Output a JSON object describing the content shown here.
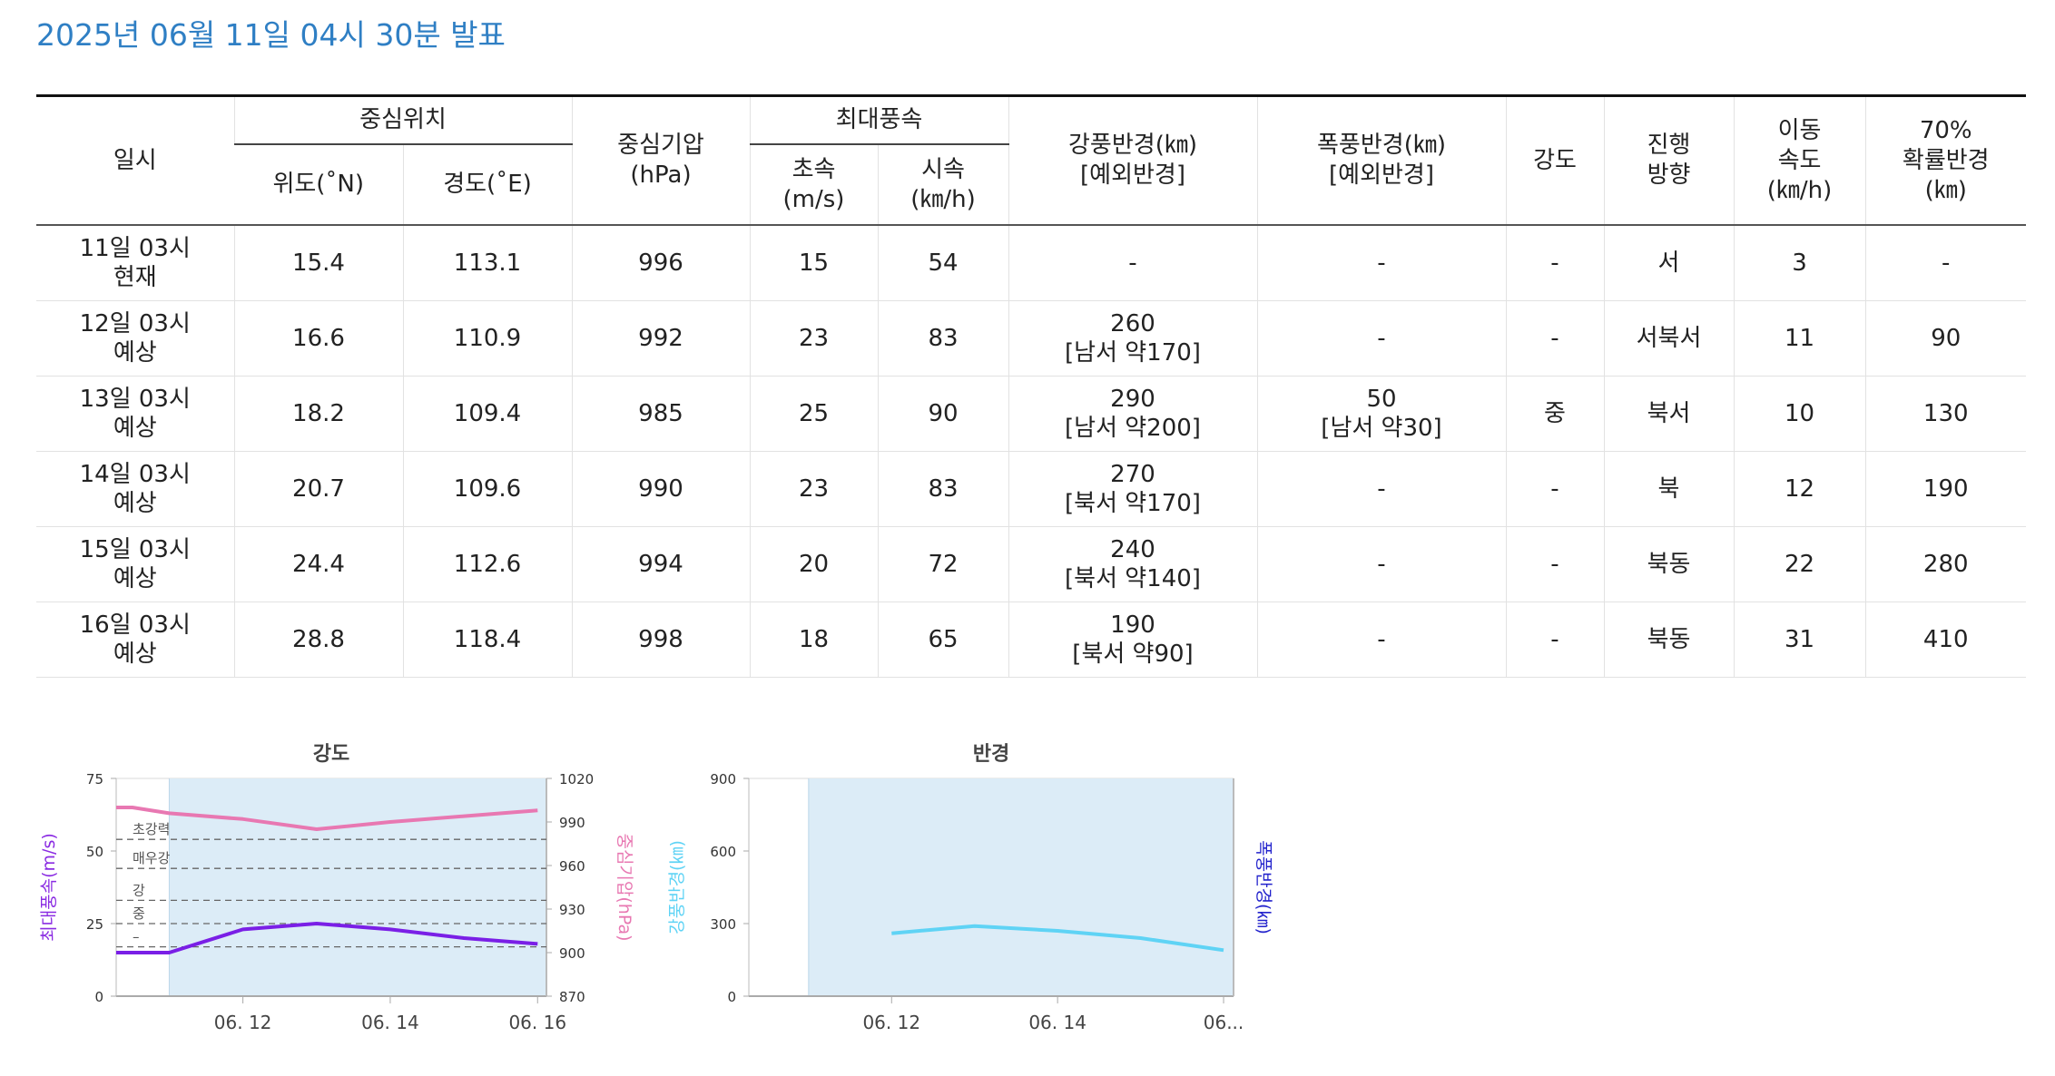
{
  "header": {
    "title": "2025년 06월 11일 04시 30분 발표"
  },
  "table": {
    "headers": {
      "datetime": "일시",
      "center_group": "중심위치",
      "lat": "위도(˚N)",
      "lon": "경도(˚E)",
      "pressure": [
        "중심기압",
        "(hPa)"
      ],
      "maxwind_group": "최대풍속",
      "wind_ms": [
        "초속",
        "(m/s)"
      ],
      "wind_kmh": [
        "시속",
        "(㎞/h)"
      ],
      "gale_radius": [
        "강풍반경(㎞)",
        "[예외반경]"
      ],
      "storm_radius": [
        "폭풍반경(㎞)",
        "[예외반경]"
      ],
      "intensity": "강도",
      "direction": [
        "진행",
        "방향"
      ],
      "speed": [
        "이동",
        "속도",
        "(㎞/h)"
      ],
      "prob_radius": [
        "70%",
        "확률반경",
        "(㎞)"
      ]
    },
    "rows": [
      {
        "time": "11일 03시",
        "status": "현재",
        "lat": "15.4",
        "lon": "113.1",
        "pressure": "996",
        "wind_ms": "15",
        "wind_kmh": "54",
        "gale": "-",
        "gale_ex": "",
        "storm": "-",
        "storm_ex": "",
        "intensity": "-",
        "direction": "서",
        "speed": "3",
        "prob": "-"
      },
      {
        "time": "12일 03시",
        "status": "예상",
        "lat": "16.6",
        "lon": "110.9",
        "pressure": "992",
        "wind_ms": "23",
        "wind_kmh": "83",
        "gale": "260",
        "gale_ex": "[남서 약170]",
        "storm": "-",
        "storm_ex": "",
        "intensity": "-",
        "direction": "서북서",
        "speed": "11",
        "prob": "90"
      },
      {
        "time": "13일 03시",
        "status": "예상",
        "lat": "18.2",
        "lon": "109.4",
        "pressure": "985",
        "wind_ms": "25",
        "wind_kmh": "90",
        "gale": "290",
        "gale_ex": "[남서 약200]",
        "storm": "50",
        "storm_ex": "[남서 약30]",
        "intensity": "중",
        "direction": "북서",
        "speed": "10",
        "prob": "130"
      },
      {
        "time": "14일 03시",
        "status": "예상",
        "lat": "20.7",
        "lon": "109.6",
        "pressure": "990",
        "wind_ms": "23",
        "wind_kmh": "83",
        "gale": "270",
        "gale_ex": "[북서 약170]",
        "storm": "-",
        "storm_ex": "",
        "intensity": "-",
        "direction": "북",
        "speed": "12",
        "prob": "190"
      },
      {
        "time": "15일 03시",
        "status": "예상",
        "lat": "24.4",
        "lon": "112.6",
        "pressure": "994",
        "wind_ms": "20",
        "wind_kmh": "72",
        "gale": "240",
        "gale_ex": "[북서 약140]",
        "storm": "-",
        "storm_ex": "",
        "intensity": "-",
        "direction": "북동",
        "speed": "22",
        "prob": "280"
      },
      {
        "time": "16일 03시",
        "status": "예상",
        "lat": "28.8",
        "lon": "118.4",
        "pressure": "998",
        "wind_ms": "18",
        "wind_kmh": "65",
        "gale": "190",
        "gale_ex": "[북서 약90]",
        "storm": "-",
        "storm_ex": "",
        "intensity": "-",
        "direction": "북동",
        "speed": "31",
        "prob": "410"
      }
    ]
  },
  "chart_data": [
    {
      "type": "line",
      "title": "강도",
      "ylabel": "최대풍속(m/s)",
      "y2label": "중심기압(hPa)",
      "ylim": [
        0,
        75
      ],
      "y_ticks": [
        "0",
        "25",
        "50",
        "75"
      ],
      "y2lim": [
        870,
        1020
      ],
      "y2_ticks": [
        "870",
        "900",
        "930",
        "960",
        "990",
        "1020"
      ],
      "x_ticks": [
        {
          "day": 12,
          "label": "06. 12"
        },
        {
          "day": 14,
          "label": "06. 14"
        },
        {
          "day": 16,
          "label": "06. 16"
        }
      ],
      "xlim": [
        10.28,
        16.12
      ],
      "forecast_start": 11.0,
      "thresholds": [
        {
          "label": "초강력",
          "value": 54
        },
        {
          "label": "매우강",
          "value": 44
        },
        {
          "label": "강",
          "value": 33
        },
        {
          "label": "중",
          "value": 25
        },
        {
          "label": "–",
          "value": 17
        }
      ],
      "series": [
        {
          "axis": "left",
          "color": "#7a1fe6",
          "x": [
            10.28,
            11.0,
            12.0,
            13.0,
            14.0,
            15.0,
            16.0
          ],
          "values": [
            15,
            15,
            23,
            25,
            23,
            20,
            18
          ]
        },
        {
          "axis": "right",
          "color": "#e878b2",
          "x": [
            10.28,
            10.5,
            11.0,
            12.0,
            13.0,
            14.0,
            15.0,
            16.0
          ],
          "values": [
            1000,
            1000,
            996,
            992,
            985,
            990,
            994,
            998
          ]
        }
      ]
    },
    {
      "type": "line",
      "title": "반경",
      "ylabel": "강풍반경(㎞)",
      "y2label": "폭풍반경(㎞)",
      "ylim": [
        0,
        900
      ],
      "y_ticks": [
        "0",
        "300",
        "600",
        "900"
      ],
      "x_ticks": [
        {
          "day": 12,
          "label": "06. 12"
        },
        {
          "day": 14,
          "label": "06. 14"
        },
        {
          "day": 16,
          "label": "06..."
        }
      ],
      "xlim": [
        10.28,
        16.12
      ],
      "forecast_start": 11.0,
      "series": [
        {
          "axis": "left",
          "color": "#5fd3f5",
          "x": [
            12,
            13,
            14,
            15,
            16
          ],
          "values": [
            260,
            290,
            270,
            240,
            190
          ]
        }
      ]
    }
  ]
}
